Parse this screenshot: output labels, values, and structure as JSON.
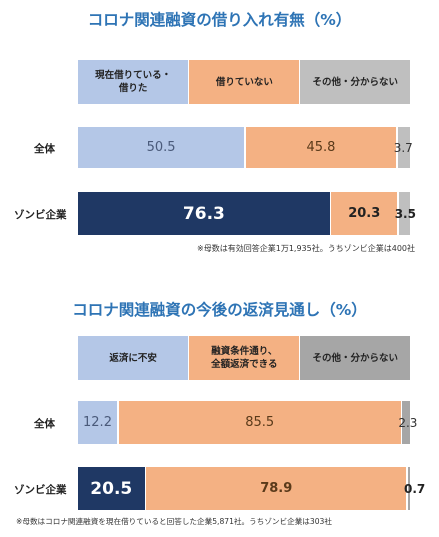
{
  "colors": {
    "title": "#2e74b5",
    "light_blue": "#b4c7e7",
    "navy": "#1f3864",
    "orange": "#f4b183",
    "gray": "#bfbfbf",
    "gray_dark": "#a6a6a6"
  },
  "chart_data": [
    {
      "type": "bar",
      "orientation": "horizontal-stacked-100",
      "title": "コロナ関連融資の借り入れ有無（%）",
      "categories": [
        "全体",
        "ゾンビ企業"
      ],
      "series": [
        {
          "name": "現在借りている・借りた",
          "values": [
            50.5,
            76.3
          ]
        },
        {
          "name": "借りていない",
          "values": [
            45.8,
            20.3
          ]
        },
        {
          "name": "その他・分からない",
          "values": [
            3.7,
            3.5
          ]
        }
      ],
      "value_labels": [
        [
          "50.5",
          "45.8",
          "3.7"
        ],
        [
          "76.3",
          "20.3",
          "3.5"
        ]
      ],
      "legend_lines": [
        [
          "現在借りている・",
          "借りた"
        ],
        [
          "借りていない"
        ],
        [
          "その他・分からない"
        ]
      ],
      "note": "※母数は有効回答企業1万1,935社。うちゾンビ企業は400社"
    },
    {
      "type": "bar",
      "orientation": "horizontal-stacked-100",
      "title": "コロナ関連融資の今後の返済見通し（%）",
      "categories": [
        "全体",
        "ゾンビ企業"
      ],
      "series": [
        {
          "name": "返済に不安",
          "values": [
            12.2,
            20.5
          ]
        },
        {
          "name": "融資条件通り、全額返済できる",
          "values": [
            85.5,
            78.9
          ]
        },
        {
          "name": "その他・分からない",
          "values": [
            2.3,
            0.7
          ]
        }
      ],
      "value_labels": [
        [
          "12.2",
          "85.5",
          "2.3"
        ],
        [
          "20.5",
          "78.9",
          "0.7"
        ]
      ],
      "legend_lines": [
        [
          "返済に不安"
        ],
        [
          "融資条件通り、",
          "全額返済できる"
        ],
        [
          "その他・分からない"
        ]
      ],
      "note": "※母数はコロナ関連融資を現在借りていると回答した企業5,871社。うちゾンビ企業は303社"
    }
  ]
}
